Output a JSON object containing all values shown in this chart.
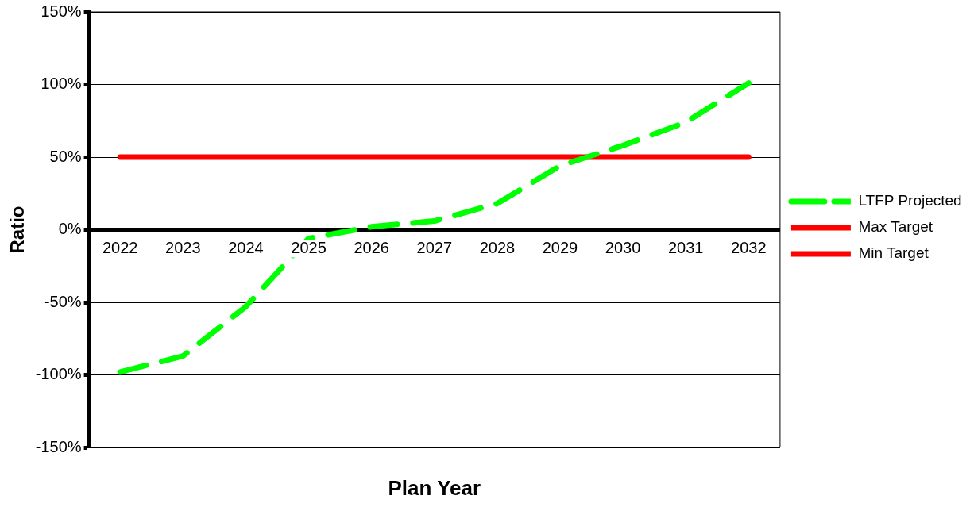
{
  "chart_data": {
    "type": "line",
    "xlabel": "Plan Year",
    "ylabel": "Ratio",
    "categories": [
      "2022",
      "2023",
      "2024",
      "2025",
      "2026",
      "2027",
      "2028",
      "2029",
      "2030",
      "2031",
      "2032"
    ],
    "series": [
      {
        "name": "LTFP Projected",
        "color": "#00ff00",
        "line_style": "dashed",
        "values": [
          -98,
          -87,
          -53,
          -6,
          2,
          6,
          18,
          44,
          58,
          74,
          101
        ]
      },
      {
        "name": "Max Target",
        "color": "#ff0000",
        "line_style": "solid",
        "values": [
          null,
          null,
          null,
          null,
          null,
          null,
          null,
          null,
          null,
          null,
          null
        ]
      },
      {
        "name": "Min Target",
        "color": "#ff0000",
        "line_style": "solid",
        "values": [
          50,
          50,
          50,
          50,
          50,
          50,
          50,
          50,
          50,
          50,
          50
        ]
      }
    ],
    "ylim": [
      -150,
      150
    ],
    "yticks": [
      {
        "value": -150,
        "label": "-150%"
      },
      {
        "value": -100,
        "label": "-100%"
      },
      {
        "value": -50,
        "label": "-50%"
      },
      {
        "value": 0,
        "label": "0%"
      },
      {
        "value": 50,
        "label": "50%"
      },
      {
        "value": 100,
        "label": "100%"
      },
      {
        "value": 150,
        "label": "150%"
      }
    ],
    "grid": "y",
    "legend": "right",
    "marker": "none"
  }
}
